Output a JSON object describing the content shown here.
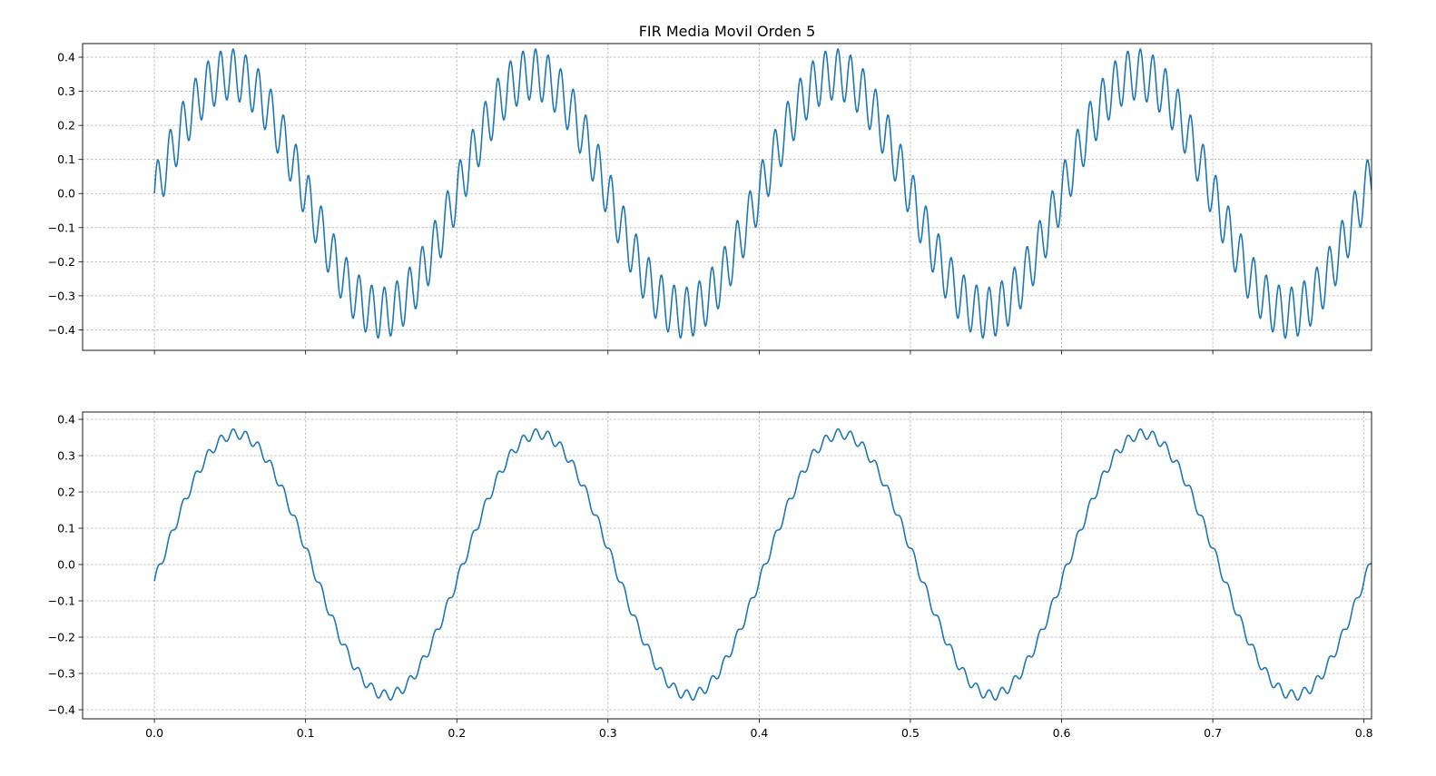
{
  "figure": {
    "title": "FIR Media Movil Orden 5"
  },
  "chart_data": [
    {
      "type": "line",
      "title": "FIR Media Movil Orden 5",
      "xlabel": "",
      "ylabel": "",
      "xlim": [
        -0.0475,
        0.805
      ],
      "ylim": [
        -0.46,
        0.44
      ],
      "x_ticks": [
        "0.0",
        "0.1",
        "0.2",
        "0.3",
        "0.4",
        "0.5",
        "0.6",
        "0.7"
      ],
      "y_ticks": [
        "0.4",
        "0.3",
        "0.2",
        "0.1",
        "0.0",
        "−0.1",
        "−0.2",
        "−0.3",
        "−0.4"
      ],
      "x_tick_labels_visible": false,
      "grid": true,
      "line_color": "#1f77b4",
      "signal": {
        "x_start": 0.0,
        "x_end": 0.805,
        "samples": 1611,
        "base_frequency_hz": 5,
        "base_amplitude": 0.35,
        "ripple_frequency_hz": 120,
        "ripple_amplitude": 0.075
      }
    },
    {
      "type": "line",
      "title": "",
      "xlabel": "",
      "ylabel": "",
      "xlim": [
        -0.0475,
        0.805
      ],
      "ylim": [
        -0.425,
        0.42
      ],
      "x_ticks": [
        "0.0",
        "0.1",
        "0.2",
        "0.3",
        "0.4",
        "0.5",
        "0.6",
        "0.7",
        "0.8"
      ],
      "y_ticks": [
        "0.4",
        "0.3",
        "0.2",
        "0.1",
        "0.0",
        "−0.1",
        "−0.2",
        "−0.3",
        "−0.4"
      ],
      "x_tick_labels_visible": true,
      "grid": true,
      "line_color": "#1f77b4",
      "signal": {
        "x_start": 0.0,
        "x_end": 0.805,
        "samples": 1611,
        "base_frequency_hz": 5,
        "base_amplitude": 0.36,
        "phase_delay": 0.004,
        "ripple_frequency_hz": 120,
        "ripple_amplitude": 0.014
      }
    }
  ]
}
